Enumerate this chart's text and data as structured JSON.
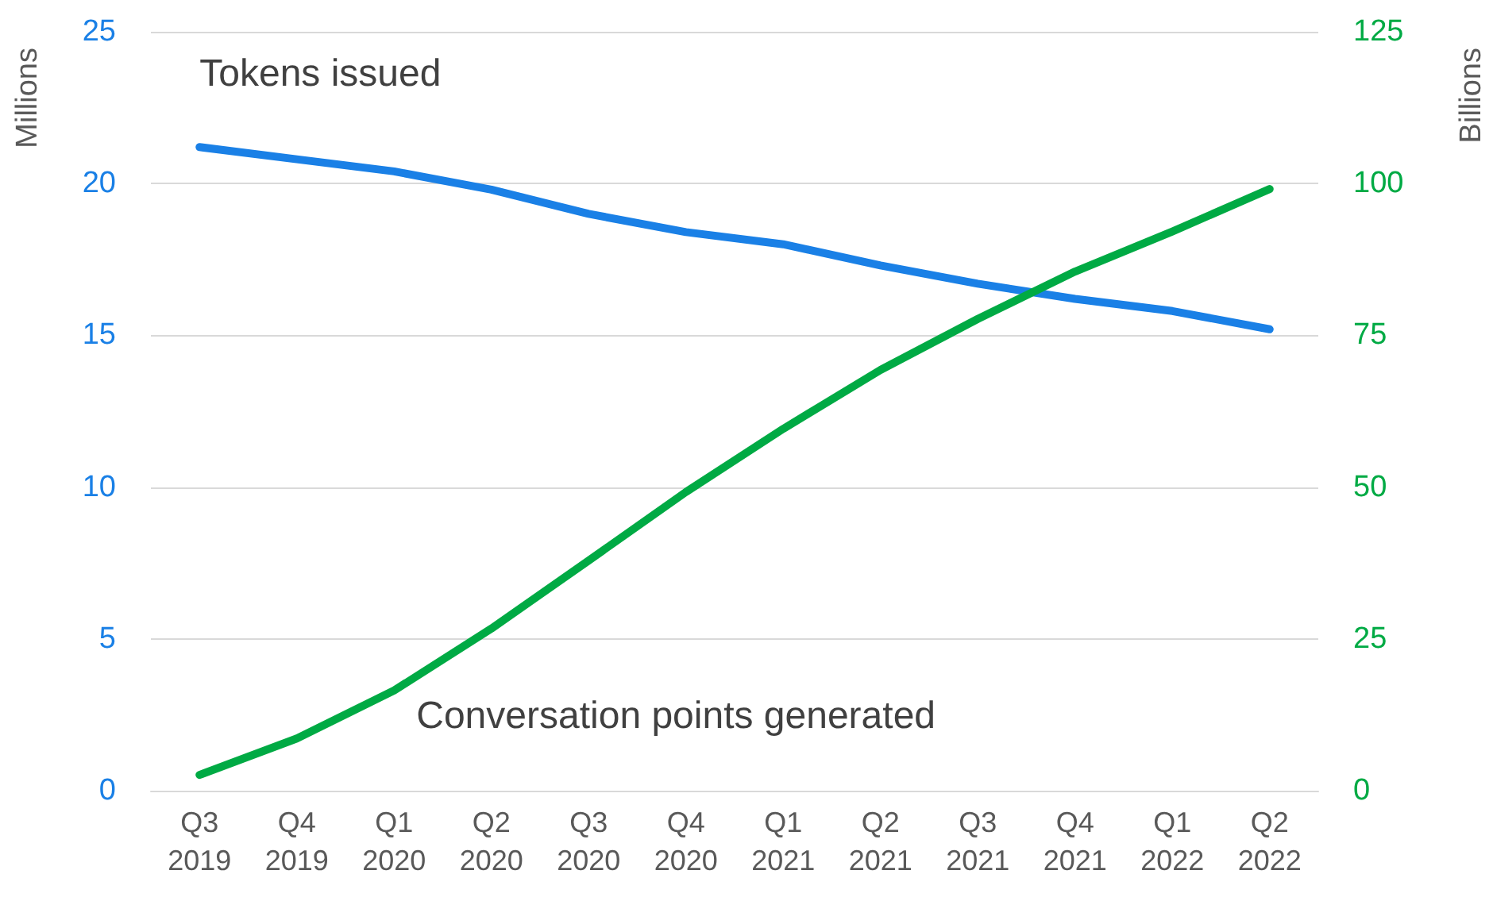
{
  "chart_data": {
    "type": "line",
    "ylabel": "Millions",
    "y2label": "Billions",
    "categories": [
      "Q3 2019",
      "Q4 2019",
      "Q1 2020",
      "Q2 2020",
      "Q3 2020",
      "Q4 2020",
      "Q1 2021",
      "Q2 2021",
      "Q3 2021",
      "Q4 2021",
      "Q1 2022",
      "Q2 2022"
    ],
    "series": [
      {
        "name": "Tokens issued",
        "color": "#1a80e6",
        "values": [
          21.2,
          20.8,
          20.4,
          19.8,
          19.0,
          18.4,
          18.0,
          17.3,
          16.7,
          16.2,
          15.8,
          15.2
        ]
      },
      {
        "name": "Conversation points generated",
        "color": "#00aa44",
        "axis": "y2",
        "values": [
          2.6,
          8.6,
          16.5,
          26.7,
          37.9,
          49.2,
          59.6,
          69.3,
          77.7,
          85.5,
          92.1,
          99.1
        ]
      }
    ],
    "ylim": [
      0,
      25
    ],
    "yticks": [
      0,
      5,
      10,
      15,
      20,
      25
    ],
    "y2lim": [
      0,
      125
    ],
    "y2ticks": [
      0,
      25,
      50,
      75,
      100,
      125
    ],
    "grid": "y",
    "legend": false,
    "marker": "none",
    "line_style": "solid"
  }
}
